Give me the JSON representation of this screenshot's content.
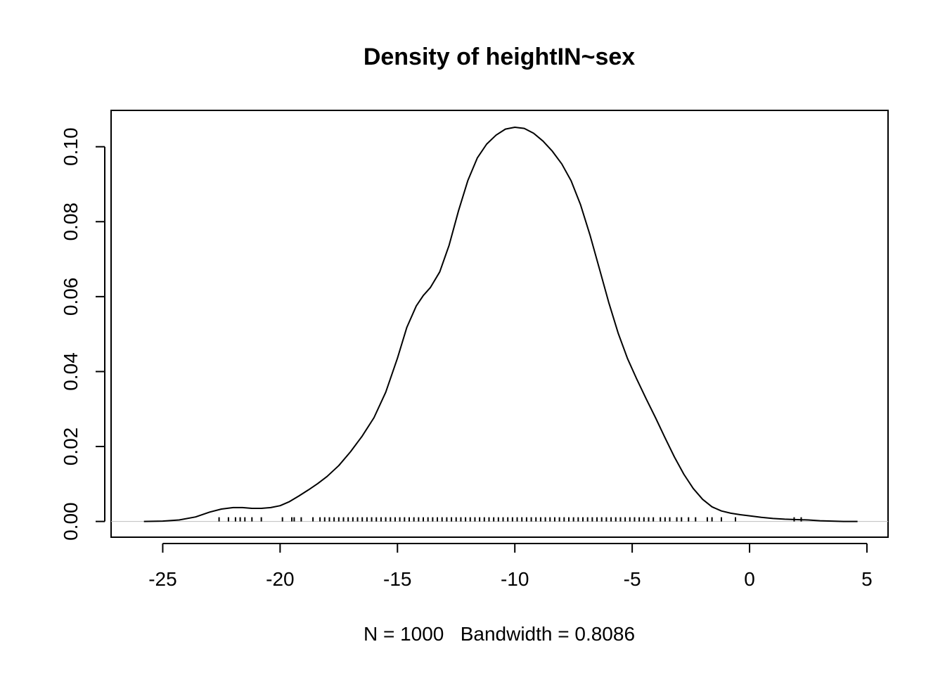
{
  "chart_data": {
    "type": "line",
    "title": "Density of heightIN~sex",
    "xlabel": "N = 1000   Bandwidth = 0.8086",
    "ylabel": "",
    "xlim": [
      -27.2,
      5.9
    ],
    "ylim": [
      -0.0042,
      0.1097
    ],
    "x_ticks": [
      -25,
      -20,
      -15,
      -10,
      -5,
      0,
      5
    ],
    "x_tick_labels": [
      "-25",
      "-20",
      "-15",
      "-10",
      "-5",
      "0",
      "5"
    ],
    "y_ticks": [
      0.0,
      0.02,
      0.04,
      0.06,
      0.08,
      0.1
    ],
    "y_tick_labels": [
      "0.00",
      "0.02",
      "0.04",
      "0.06",
      "0.08",
      "0.10"
    ],
    "grid": false,
    "legend": "none",
    "zero_line": 0,
    "series": [
      {
        "x": [
          -25.8,
          -25.0,
          -24.3,
          -23.6,
          -23.0,
          -22.5,
          -22.0,
          -21.6,
          -21.2,
          -20.8,
          -20.4,
          -20.0,
          -19.6,
          -19.2,
          -18.8,
          -18.4,
          -18.0,
          -17.5,
          -17.0,
          -16.5,
          -16.0,
          -15.5,
          -15.0,
          -14.6,
          -14.2,
          -13.9,
          -13.6,
          -13.2,
          -12.8,
          -12.4,
          -12.0,
          -11.6,
          -11.2,
          -10.8,
          -10.4,
          -10.0,
          -9.6,
          -9.2,
          -8.8,
          -8.4,
          -8.0,
          -7.6,
          -7.2,
          -6.8,
          -6.4,
          -6.0,
          -5.6,
          -5.2,
          -4.8,
          -4.4,
          -4.0,
          -3.6,
          -3.2,
          -2.8,
          -2.4,
          -2.0,
          -1.6,
          -1.2,
          -0.8,
          -0.4,
          0.0,
          0.5,
          1.0,
          1.5,
          2.0,
          2.5,
          3.0,
          3.5,
          4.0,
          4.6
        ],
        "y": [
          0.0,
          0.0001,
          0.0004,
          0.0012,
          0.0025,
          0.0033,
          0.0037,
          0.0037,
          0.0035,
          0.0035,
          0.0037,
          0.0042,
          0.0053,
          0.0068,
          0.0084,
          0.0101,
          0.012,
          0.0149,
          0.0186,
          0.0228,
          0.0277,
          0.0345,
          0.0436,
          0.0518,
          0.0575,
          0.0603,
          0.0624,
          0.0666,
          0.0737,
          0.0829,
          0.091,
          0.097,
          0.1007,
          0.1031,
          0.1047,
          0.1052,
          0.1049,
          0.1036,
          0.1015,
          0.0988,
          0.0954,
          0.0909,
          0.0845,
          0.0765,
          0.0675,
          0.0585,
          0.0503,
          0.0435,
          0.0379,
          0.0327,
          0.0276,
          0.0223,
          0.0172,
          0.0126,
          0.0088,
          0.0059,
          0.0039,
          0.0028,
          0.0022,
          0.0018,
          0.0015,
          0.0011,
          0.0008,
          0.0006,
          0.0005,
          0.0004,
          0.0002,
          0.0001,
          0.0,
          0.0
        ]
      }
    ],
    "rug": [
      -22.6,
      -22.2,
      -21.9,
      -21.7,
      -21.5,
      -21.2,
      -20.8,
      -19.9,
      -19.5,
      -19.4,
      -19.1,
      -18.6,
      -18.3,
      -18.1,
      -17.9,
      -17.7,
      -17.5,
      -17.3,
      -17.1,
      -16.9,
      -16.7,
      -16.5,
      -16.3,
      -16.1,
      -15.9,
      -15.7,
      -15.5,
      -15.3,
      -15.1,
      -14.9,
      -14.7,
      -14.5,
      -14.3,
      -14.1,
      -13.9,
      -13.7,
      -13.5,
      -13.3,
      -13.1,
      -12.9,
      -12.7,
      -12.5,
      -12.3,
      -12.1,
      -11.9,
      -11.7,
      -11.5,
      -11.3,
      -11.1,
      -10.9,
      -10.7,
      -10.5,
      -10.3,
      -10.1,
      -9.9,
      -9.7,
      -9.5,
      -9.3,
      -9.1,
      -8.9,
      -8.7,
      -8.5,
      -8.3,
      -8.1,
      -7.9,
      -7.7,
      -7.5,
      -7.3,
      -7.1,
      -6.9,
      -6.7,
      -6.5,
      -6.3,
      -6.1,
      -5.9,
      -5.7,
      -5.5,
      -5.3,
      -5.1,
      -4.9,
      -4.7,
      -4.5,
      -4.3,
      -4.1,
      -3.8,
      -3.6,
      -3.4,
      -3.1,
      -2.9,
      -2.6,
      -2.3,
      -1.8,
      -1.6,
      -1.2,
      -0.6,
      1.9,
      2.2
    ]
  }
}
